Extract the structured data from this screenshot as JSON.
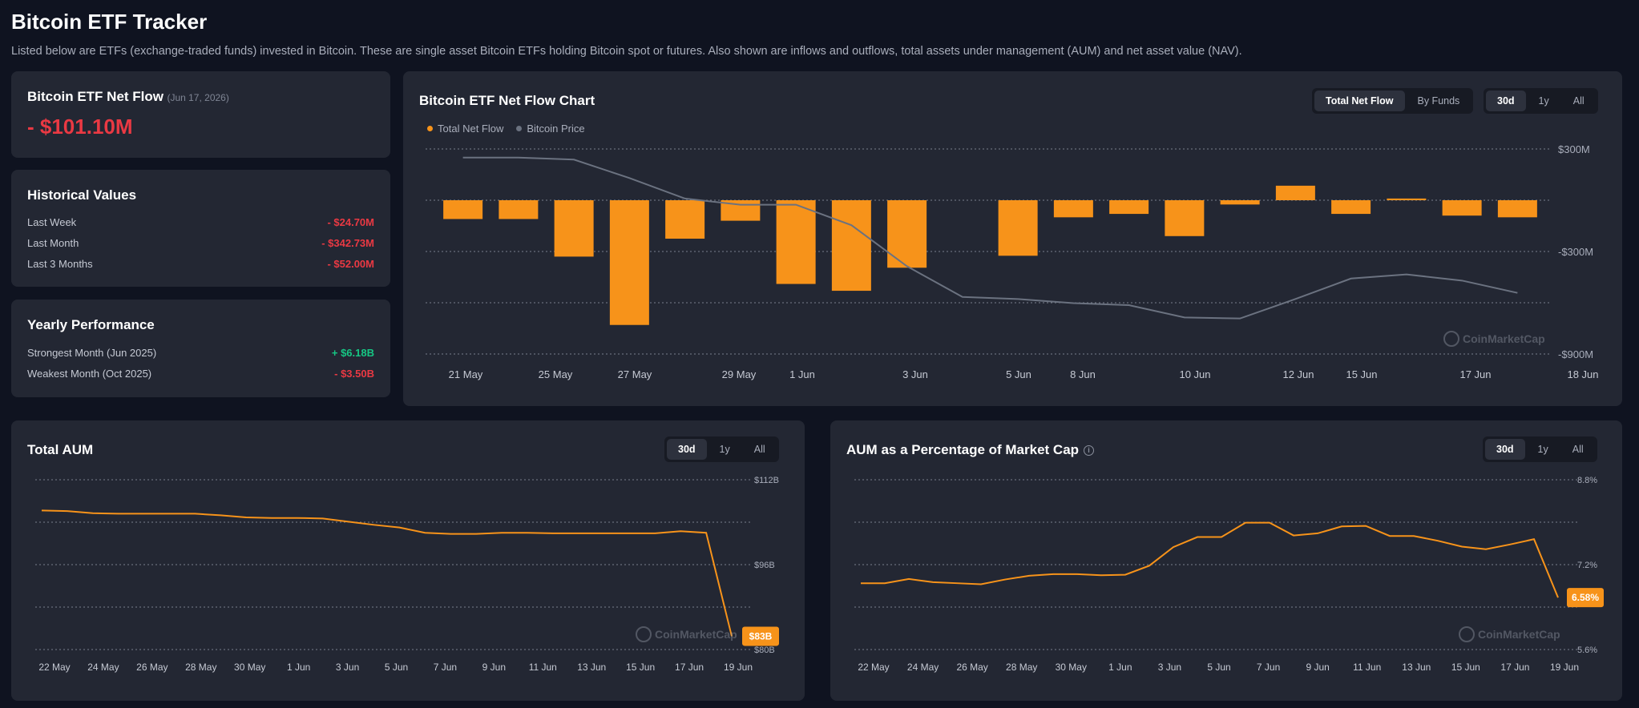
{
  "page": {
    "title": "Bitcoin ETF Tracker",
    "description": "Listed below are ETFs (exchange-traded funds) invested in Bitcoin. These are single asset Bitcoin ETFs holding Bitcoin spot or futures. Also shown are inflows and outflows, total assets under management (AUM) and net asset value (NAV)."
  },
  "net_flow_card": {
    "label": "Bitcoin ETF Net Flow",
    "date": "(Jun 17, 2026)",
    "value": "- $101.10M"
  },
  "historical": {
    "title": "Historical Values",
    "rows": [
      {
        "label": "Last Week",
        "value": "- $24.70M"
      },
      {
        "label": "Last Month",
        "value": "- $342.73M"
      },
      {
        "label": "Last 3 Months",
        "value": "- $52.00M"
      }
    ]
  },
  "yearly": {
    "title": "Yearly Performance",
    "rows": [
      {
        "label": "Strongest Month",
        "period": "(Jun 2025)",
        "value": "+ $6.18B"
      },
      {
        "label": "Weakest Month",
        "period": "(Oct 2025)",
        "value": "- $3.50B"
      }
    ]
  },
  "flow_chart": {
    "title": "Bitcoin ETF Net Flow Chart",
    "view_tabs": [
      "Total Net Flow",
      "By Funds"
    ],
    "range_tabs": [
      "30d",
      "1y",
      "All"
    ],
    "legend": [
      "Total Net Flow",
      "Bitcoin Price"
    ],
    "watermark": "CoinMarketCap",
    "colors": {
      "flow": "#f7931a",
      "price": "#6b7280"
    }
  },
  "aum_chart": {
    "title": "Total AUM",
    "range_tabs": [
      "30d",
      "1y",
      "All"
    ],
    "current_label": "$83B",
    "watermark": "CoinMarketCap"
  },
  "pct_chart": {
    "title": "AUM as a Percentage of Market Cap",
    "info_icon": "info-icon",
    "range_tabs": [
      "30d",
      "1y",
      "All"
    ],
    "current_label": "6.58%",
    "watermark": "CoinMarketCap"
  },
  "chart_data": [
    {
      "type": "bar",
      "title": "Bitcoin ETF Net Flow Chart",
      "x_tick_labels": [
        "21 May",
        "25 May",
        "27 May",
        "29 May",
        "1 Jun",
        "3 Jun",
        "5 Jun",
        "8 Jun",
        "10 Jun",
        "12 Jun",
        "15 Jun",
        "17 Jun",
        "18 Jun"
      ],
      "y_tick_labels": [
        "$300M",
        "-$300M",
        "-$900M"
      ],
      "ylim": [
        -900,
        300
      ],
      "series": [
        {
          "name": "Total Net Flow",
          "type": "bar",
          "values": [
            -110,
            -110,
            -330,
            -730,
            -225,
            -120,
            -490,
            -530,
            -395,
            null,
            -325,
            -100,
            -80,
            -210,
            -25,
            85,
            -80,
            10,
            -90,
            -100
          ]
        },
        {
          "name": "Bitcoin Price",
          "type": "line",
          "values": [
            0.88,
            0.88,
            0.87,
            0.78,
            0.68,
            0.65,
            0.65,
            0.55,
            0.35,
            0.2,
            0.19,
            0.17,
            0.16,
            0.1,
            0.095,
            0.19,
            0.29,
            0.31,
            0.28,
            0.22
          ]
        }
      ],
      "grid": true,
      "legend": "top-left"
    },
    {
      "type": "line",
      "title": "Total AUM",
      "x_tick_labels": [
        "22 May",
        "24 May",
        "26 May",
        "28 May",
        "30 May",
        "1 Jun",
        "3 Jun",
        "5 Jun",
        "7 Jun",
        "9 Jun",
        "11 Jun",
        "13 Jun",
        "15 Jun",
        "17 Jun",
        "19 Jun"
      ],
      "y_tick_labels": [
        "$112B",
        "$96B",
        "$80B"
      ],
      "ylim": [
        80,
        112
      ],
      "values": [
        106.2,
        106.1,
        105.7,
        105.6,
        105.6,
        105.6,
        105.6,
        105.3,
        104.9,
        104.8,
        104.8,
        104.7,
        104.1,
        103.5,
        103.0,
        102.0,
        101.8,
        101.8,
        102.0,
        102.0,
        101.9,
        101.9,
        101.9,
        101.9,
        101.9,
        102.3,
        102.0,
        82.5
      ],
      "current_value_label": "$83B",
      "grid": true
    },
    {
      "type": "line",
      "title": "AUM as a Percentage of Market Cap",
      "x_tick_labels": [
        "22 May",
        "24 May",
        "26 May",
        "28 May",
        "30 May",
        "1 Jun",
        "3 Jun",
        "5 Jun",
        "7 Jun",
        "9 Jun",
        "11 Jun",
        "13 Jun",
        "15 Jun",
        "17 Jun",
        "19 Jun"
      ],
      "y_tick_labels": [
        "8.8%",
        "7.2%",
        "5.6%"
      ],
      "ylim": [
        5.6,
        8.8
      ],
      "values": [
        6.85,
        6.85,
        6.93,
        6.87,
        6.85,
        6.83,
        6.92,
        6.99,
        7.02,
        7.02,
        7.0,
        7.01,
        7.18,
        7.53,
        7.72,
        7.72,
        7.99,
        7.99,
        7.75,
        7.79,
        7.92,
        7.93,
        7.74,
        7.74,
        7.65,
        7.54,
        7.49,
        7.58,
        7.68,
        6.58
      ],
      "current_value_label": "6.58%",
      "grid": true
    }
  ]
}
